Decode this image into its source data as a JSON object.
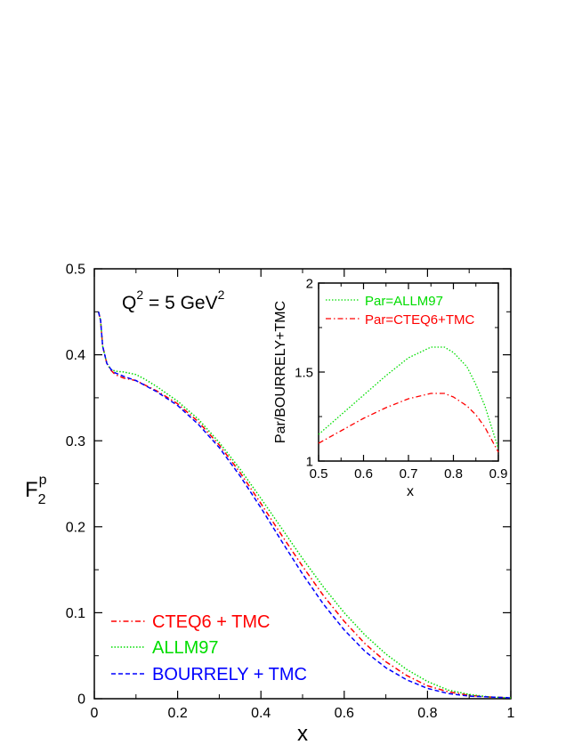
{
  "colors": {
    "cteq6": "#ff0000",
    "allm97": "#00dd00",
    "bourrely": "#0000ff",
    "axis": "#000000"
  },
  "chart_data": [
    {
      "id": "main",
      "type": "line",
      "xlabel": "x",
      "ylabel": {
        "base": "F",
        "sub": "2",
        "sup": "p"
      },
      "annotation": {
        "pre": "Q",
        "sup1": "2",
        "mid": " = 5 GeV",
        "sup2": "2"
      },
      "xlim": [
        0,
        1
      ],
      "ylim": [
        0,
        0.5
      ],
      "xticks": [
        0,
        0.2,
        0.4,
        0.6,
        0.8,
        1
      ],
      "xtick_labels": [
        "0",
        "0.2",
        "0.4",
        "0.6",
        "0.8",
        "1"
      ],
      "yticks": [
        0,
        0.1,
        0.2,
        0.3,
        0.4,
        0.5
      ],
      "ytick_labels": [
        "0",
        "0.1",
        "0.2",
        "0.3",
        "0.4",
        "0.5"
      ],
      "legend_position": "bottom-left",
      "grid": false,
      "series": [
        {
          "name": "CTEQ6 + TMC",
          "color": "#ff0000",
          "style": "dashdot",
          "x": [
            0.01,
            0.015,
            0.02,
            0.03,
            0.04,
            0.05,
            0.07,
            0.1,
            0.15,
            0.2,
            0.25,
            0.3,
            0.35,
            0.4,
            0.45,
            0.5,
            0.55,
            0.6,
            0.65,
            0.7,
            0.75,
            0.8,
            0.85,
            0.9,
            0.95,
            1.0
          ],
          "y": [
            0.45,
            0.44,
            0.41,
            0.39,
            0.382,
            0.377,
            0.373,
            0.37,
            0.358,
            0.343,
            0.322,
            0.295,
            0.263,
            0.227,
            0.19,
            0.154,
            0.12,
            0.09,
            0.064,
            0.043,
            0.027,
            0.015,
            0.008,
            0.004,
            0.002,
            0.001
          ]
        },
        {
          "name": "ALLM97",
          "color": "#00dd00",
          "style": "dotted",
          "x": [
            0.01,
            0.015,
            0.02,
            0.03,
            0.04,
            0.05,
            0.07,
            0.1,
            0.12,
            0.15,
            0.2,
            0.25,
            0.3,
            0.35,
            0.4,
            0.45,
            0.5,
            0.55,
            0.6,
            0.65,
            0.7,
            0.75,
            0.8,
            0.85,
            0.9,
            0.95,
            1.0
          ],
          "y": [
            0.45,
            0.44,
            0.41,
            0.39,
            0.383,
            0.381,
            0.38,
            0.377,
            0.372,
            0.363,
            0.346,
            0.325,
            0.298,
            0.267,
            0.233,
            0.198,
            0.163,
            0.13,
            0.1,
            0.074,
            0.052,
            0.034,
            0.02,
            0.01,
            0.005,
            0.002,
            0.001
          ]
        },
        {
          "name": "BOURRELY + TMC",
          "color": "#0000ff",
          "style": "dashed",
          "x": [
            0.01,
            0.015,
            0.02,
            0.03,
            0.04,
            0.05,
            0.07,
            0.1,
            0.15,
            0.2,
            0.25,
            0.3,
            0.35,
            0.4,
            0.45,
            0.5,
            0.55,
            0.6,
            0.65,
            0.7,
            0.75,
            0.8,
            0.85,
            0.9,
            0.95,
            1.0
          ],
          "y": [
            0.45,
            0.44,
            0.41,
            0.39,
            0.383,
            0.379,
            0.375,
            0.37,
            0.357,
            0.341,
            0.319,
            0.292,
            0.259,
            0.222,
            0.183,
            0.145,
            0.11,
            0.08,
            0.055,
            0.036,
            0.022,
            0.012,
            0.006,
            0.003,
            0.002,
            0.001
          ]
        }
      ]
    },
    {
      "id": "inset",
      "type": "line",
      "xlabel": "x",
      "ylabel": "Par/BOURRELY+TMC",
      "xlim": [
        0.5,
        0.9
      ],
      "ylim": [
        1,
        2
      ],
      "xticks": [
        0.5,
        0.6,
        0.7,
        0.8,
        0.9
      ],
      "xtick_labels": [
        "0.5",
        "0.6",
        "0.7",
        "0.8",
        "0.9"
      ],
      "yticks": [
        1,
        1.5,
        2
      ],
      "ytick_labels": [
        "1",
        "1.5",
        "2"
      ],
      "legend_position": "top-right",
      "grid": false,
      "series": [
        {
          "name": "Par=ALLM97",
          "color": "#00dd00",
          "style": "dotted",
          "x": [
            0.5,
            0.55,
            0.6,
            0.65,
            0.7,
            0.75,
            0.78,
            0.8,
            0.83,
            0.85,
            0.87,
            0.9
          ],
          "y": [
            1.15,
            1.26,
            1.37,
            1.48,
            1.58,
            1.64,
            1.64,
            1.61,
            1.53,
            1.43,
            1.31,
            1.07
          ]
        },
        {
          "name": "Par=CTEQ6+TMC",
          "color": "#ff0000",
          "style": "dashdot",
          "x": [
            0.5,
            0.55,
            0.6,
            0.65,
            0.7,
            0.75,
            0.78,
            0.8,
            0.83,
            0.85,
            0.87,
            0.9
          ],
          "y": [
            1.1,
            1.17,
            1.24,
            1.3,
            1.35,
            1.38,
            1.38,
            1.36,
            1.31,
            1.26,
            1.19,
            1.05
          ]
        }
      ]
    }
  ]
}
